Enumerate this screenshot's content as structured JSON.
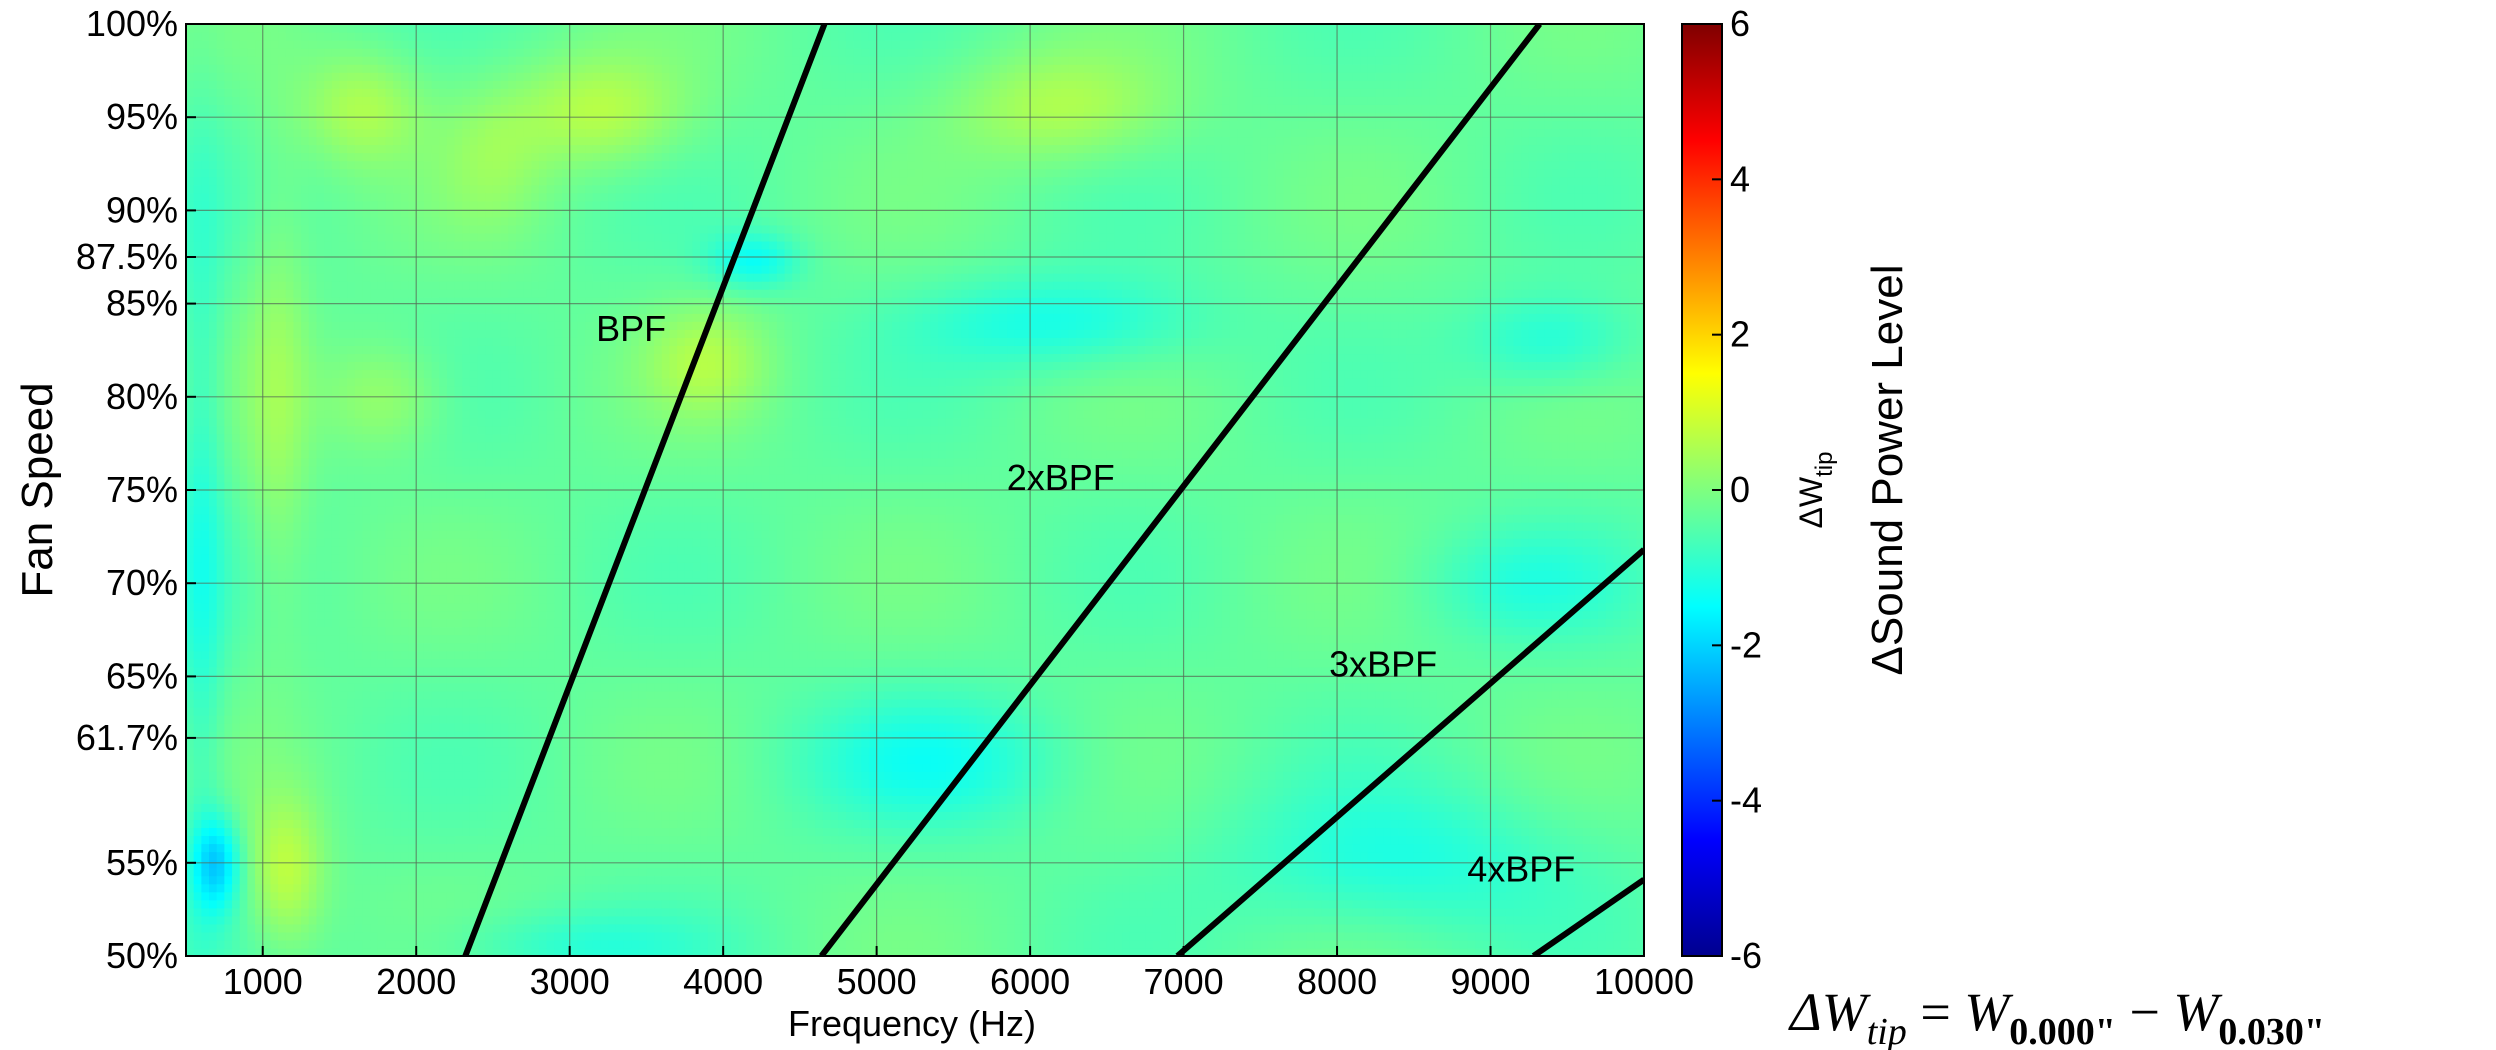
{
  "chart_data": {
    "type": "heatmap",
    "xlabel": "Frequency (Hz)",
    "ylabel": "Fan Speed",
    "xlim": [
      500,
      10000
    ],
    "ylim": [
      50,
      100
    ],
    "x_ticks": [
      "1000",
      "2000",
      "3000",
      "4000",
      "5000",
      "6000",
      "7000",
      "8000",
      "9000",
      "10000"
    ],
    "x_tick_values": [
      1000,
      2000,
      3000,
      4000,
      5000,
      6000,
      7000,
      8000,
      9000,
      10000
    ],
    "y_ticks": [
      "50%",
      "55%",
      "61.7%",
      "65%",
      "70%",
      "75%",
      "80%",
      "85%",
      "87.5%",
      "90%",
      "95%",
      "100%"
    ],
    "y_tick_values": [
      50,
      55,
      61.7,
      65,
      70,
      75,
      80,
      85,
      87.5,
      90,
      95,
      100
    ],
    "grid": true,
    "colorbar": {
      "label": "ΔSound Power Level",
      "symbol": "ΔW",
      "symbol_sub": "tip",
      "range": [
        -6,
        6
      ],
      "ticks": [
        "6",
        "4",
        "2",
        "0",
        "-2",
        "-4",
        "-6"
      ],
      "tick_values": [
        6,
        4,
        2,
        0,
        -2,
        -4,
        -6
      ],
      "colormap": "jet"
    },
    "harmonic_lines": [
      {
        "label": "BPF",
        "x": [
          2320,
          4660
        ],
        "y": [
          50,
          100
        ],
        "label_at": [
          3400,
          83
        ]
      },
      {
        "label": "2xBPF",
        "x": [
          4640,
          9320
        ],
        "y": [
          50,
          100
        ],
        "label_at": [
          6200,
          75
        ]
      },
      {
        "label": "3xBPF",
        "x": [
          6960,
          10000
        ],
        "y": [
          50,
          71.8
        ],
        "label_at": [
          8300,
          65
        ]
      },
      {
        "label": "4xBPF",
        "x": [
          9280,
          10000
        ],
        "y": [
          50,
          54.1
        ],
        "label_at": [
          9200,
          54
        ]
      }
    ],
    "blobs": [
      {
        "x": 1650,
        "y": 95.5,
        "v": 0.9,
        "rx": 400,
        "ry": 3.0
      },
      {
        "x": 3200,
        "y": 95.3,
        "v": 1.0,
        "rx": 550,
        "ry": 3.0
      },
      {
        "x": 6200,
        "y": 95.5,
        "v": 0.9,
        "rx": 700,
        "ry": 3.0
      },
      {
        "x": 3900,
        "y": 82,
        "v": 0.8,
        "rx": 400,
        "ry": 3.0
      },
      {
        "x": 1150,
        "y": 54.5,
        "v": 1.1,
        "rx": 250,
        "ry": 4.0
      },
      {
        "x": 1100,
        "y": 80,
        "v": 0.6,
        "rx": 200,
        "ry": 12.0
      },
      {
        "x": 1800,
        "y": 80,
        "v": 0.7,
        "rx": 400,
        "ry": 3.0
      },
      {
        "x": 2500,
        "y": 93,
        "v": 0.5,
        "rx": 350,
        "ry": 4.0
      },
      {
        "x": 700,
        "y": 55,
        "v": -1.6,
        "rx": 160,
        "ry": 2.5
      },
      {
        "x": 4200,
        "y": 87.3,
        "v": -1.0,
        "rx": 300,
        "ry": 1.5
      },
      {
        "x": 6200,
        "y": 84,
        "v": -0.9,
        "rx": 900,
        "ry": 2.5
      },
      {
        "x": 9400,
        "y": 83,
        "v": -0.8,
        "rx": 550,
        "ry": 2.5
      },
      {
        "x": 5400,
        "y": 60.5,
        "v": -0.8,
        "rx": 900,
        "ry": 3.5
      },
      {
        "x": 8400,
        "y": 55,
        "v": -0.8,
        "rx": 1100,
        "ry": 4.0
      },
      {
        "x": 9200,
        "y": 70,
        "v": -0.6,
        "rx": 700,
        "ry": 3.0
      },
      {
        "x": 3000,
        "y": 50.5,
        "v": -0.6,
        "rx": 900,
        "ry": 2.0
      },
      {
        "x": 600,
        "y": 72,
        "v": -0.7,
        "rx": 150,
        "ry": 20.0
      }
    ]
  },
  "formula": {
    "lhs": "ΔW",
    "lhs_sub": "tip",
    "eq": " = ",
    "t1": "W",
    "t1_sub": "0.000\"",
    "minus": " − ",
    "t2": "W",
    "t2_sub": "0.030\""
  }
}
